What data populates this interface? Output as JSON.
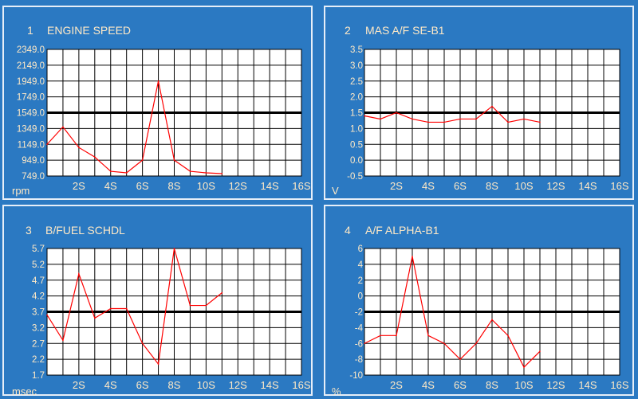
{
  "chart_data": [
    {
      "type": "line",
      "number": "1",
      "title": "ENGINE SPEED",
      "ylabel": "rpm",
      "ylim": [
        749.0,
        2349.0
      ],
      "yticks": [
        "2349.0",
        "2149.0",
        "1949.0",
        "1749.0",
        "1549.0",
        "1349.0",
        "1149.0",
        "949.0",
        "749.0"
      ],
      "xticks": [
        "2S",
        "4S",
        "6S",
        "8S",
        "10S",
        "12S",
        "14S",
        "16S"
      ],
      "xlim": [
        0,
        16
      ],
      "reference": 1549.0,
      "series": [
        {
          "x": [
            0,
            1,
            2,
            3,
            4,
            5,
            6,
            7,
            8,
            9,
            10,
            11
          ],
          "values": [
            1149,
            1369,
            1109,
            989,
            809,
            789,
            949,
            1949,
            949,
            809,
            789,
            779
          ]
        }
      ]
    },
    {
      "type": "line",
      "number": "2",
      "title": "MAS A/F SE-B1",
      "ylabel": "V",
      "ylim": [
        -0.5,
        3.5
      ],
      "yticks": [
        "3.5",
        "3.0",
        "2.5",
        "2.0",
        "1.5",
        "1.0",
        "0.5",
        "0.0",
        "-0.5"
      ],
      "xticks": [
        "2S",
        "4S",
        "6S",
        "8S",
        "10S",
        "12S",
        "14S",
        "16S"
      ],
      "xlim": [
        0,
        16
      ],
      "reference": 1.5,
      "series": [
        {
          "x": [
            0,
            1,
            2,
            3,
            4,
            5,
            6,
            7,
            8,
            9,
            10,
            11
          ],
          "values": [
            1.4,
            1.3,
            1.5,
            1.3,
            1.2,
            1.2,
            1.3,
            1.3,
            1.7,
            1.2,
            1.3,
            1.2
          ]
        }
      ]
    },
    {
      "type": "line",
      "number": "3",
      "title": "B/FUEL SCHDL",
      "ylabel": "msec",
      "ylim": [
        1.7,
        5.7
      ],
      "yticks": [
        "5.7",
        "5.2",
        "4.7",
        "4.2",
        "3.7",
        "3.2",
        "2.7",
        "2.2",
        "1.7"
      ],
      "xticks": [
        "2S",
        "4S",
        "6S",
        "8S",
        "10S",
        "12S",
        "14S",
        "16S"
      ],
      "xlim": [
        0,
        16
      ],
      "reference": 3.7,
      "series": [
        {
          "x": [
            0,
            1,
            2,
            3,
            4,
            5,
            6,
            7,
            8,
            9,
            10,
            11
          ],
          "values": [
            3.6,
            2.8,
            4.9,
            3.5,
            3.8,
            3.8,
            2.7,
            2.05,
            5.7,
            3.9,
            3.9,
            4.3
          ]
        }
      ]
    },
    {
      "type": "line",
      "number": "4",
      "title": "A/F ALPHA-B1",
      "ylabel": "%",
      "ylim": [
        -10,
        6
      ],
      "yticks": [
        "6",
        "4",
        "2",
        "0",
        "-2",
        "-4",
        "-6",
        "-8",
        "-10"
      ],
      "xticks": [
        "2S",
        "4S",
        "6S",
        "8S",
        "10S",
        "12S",
        "14S",
        "16S"
      ],
      "xlim": [
        0,
        16
      ],
      "reference": -2,
      "series": [
        {
          "x": [
            0,
            1,
            2,
            3,
            4,
            5,
            6,
            7,
            8,
            9,
            10,
            11
          ],
          "values": [
            -6,
            -5,
            -5,
            5,
            -5,
            -6,
            -8,
            -6,
            -3,
            -5,
            -9,
            -7
          ]
        }
      ]
    }
  ],
  "colors": {
    "background": "#2b79c2",
    "plot": "#ffffff",
    "grid": "#000000",
    "reference": "#000000",
    "trace": "#ff0000",
    "text": "#ffe9c6",
    "border": "#e6eef8"
  }
}
